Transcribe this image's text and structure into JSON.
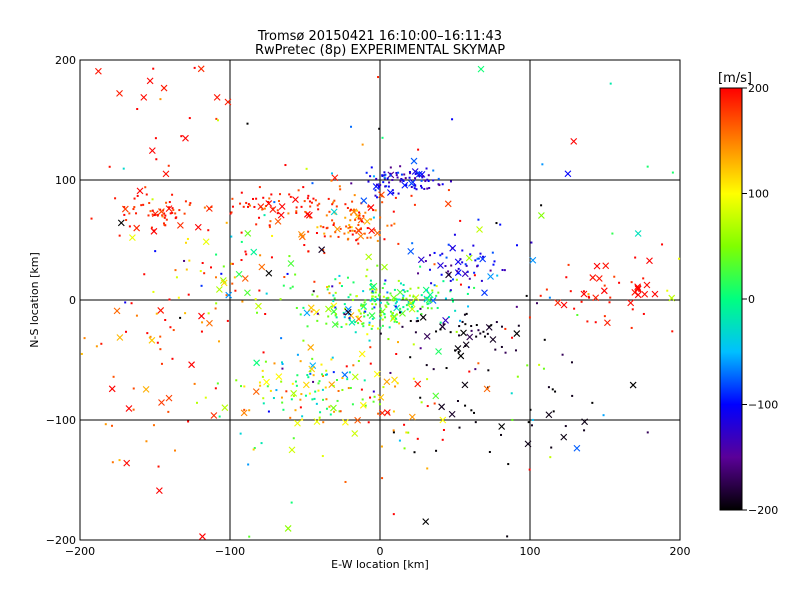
{
  "chart_data": {
    "type": "scatter",
    "title": "Tromsø 20150421 16:10:00–16:11:43",
    "subtitle": "RwPretec (8p) EXPERIMENTAL SKYMAP",
    "xlabel": "E-W location [km]",
    "ylabel": "N-S location [km]",
    "xlim": [
      -200,
      200
    ],
    "ylim": [
      -200,
      200
    ],
    "x_ticks": [
      -200,
      -100,
      0,
      100,
      200
    ],
    "y_ticks": [
      -200,
      -100,
      0,
      100,
      200
    ],
    "x_tick_labels": [
      "−200",
      "−100",
      "0",
      "100",
      "200"
    ],
    "y_tick_labels": [
      "−200",
      "−100",
      "0",
      "100",
      "200"
    ],
    "grid": true,
    "colorbar": {
      "label": "[m/s]",
      "min": -200,
      "max": 200,
      "ticks": [
        200,
        100,
        0,
        -100,
        -200
      ],
      "tick_labels": [
        "200",
        "100",
        "0",
        "−100",
        "−200"
      ],
      "colormap": [
        "#000000",
        "#5a0098",
        "#0000ff",
        "#00c0ff",
        "#00ff80",
        "#80ff00",
        "#ffff00",
        "#ff8000",
        "#ff0000"
      ]
    },
    "markers": [
      "dot",
      "x"
    ],
    "clusters": [
      {
        "cx": 15,
        "cy": 100,
        "sx": 15,
        "sy": 6,
        "n": 90,
        "v": -110,
        "vs": 25,
        "x_frac": 0.1
      },
      {
        "cx": -15,
        "cy": 62,
        "sx": 14,
        "sy": 10,
        "n": 90,
        "v": 165,
        "vs": 25,
        "x_frac": 0.12
      },
      {
        "cx": -65,
        "cy": 78,
        "sx": 30,
        "sy": 10,
        "n": 90,
        "v": 185,
        "vs": 20,
        "x_frac": 0.1
      },
      {
        "cx": -148,
        "cy": 72,
        "sx": 12,
        "sy": 10,
        "n": 60,
        "v": 190,
        "vs": 15,
        "x_frac": 0.15
      },
      {
        "cx": -12,
        "cy": -5,
        "sx": 18,
        "sy": 12,
        "n": 150,
        "v": 20,
        "vs": 45,
        "x_frac": 0.15
      },
      {
        "cx": 25,
        "cy": 0,
        "sx": 22,
        "sy": 8,
        "n": 80,
        "v": 0,
        "vs": 40,
        "x_frac": 0.15
      },
      {
        "cx": -50,
        "cy": -75,
        "sx": 28,
        "sy": 18,
        "n": 120,
        "v": 40,
        "vs": 70,
        "x_frac": 0.2
      },
      {
        "cx": 55,
        "cy": 30,
        "sx": 15,
        "sy": 12,
        "n": 60,
        "v": -110,
        "vs": 30,
        "x_frac": 0.2
      },
      {
        "cx": 155,
        "cy": 5,
        "sx": 22,
        "sy": 14,
        "n": 50,
        "v": 195,
        "vs": 10,
        "x_frac": 0.45
      },
      {
        "cx": 55,
        "cy": -25,
        "sx": 30,
        "sy": 16,
        "n": 60,
        "v": -190,
        "vs": 15,
        "x_frac": 0.2
      },
      {
        "cx": 90,
        "cy": -90,
        "sx": 30,
        "sy": 20,
        "n": 40,
        "v": -195,
        "vs": 10,
        "x_frac": 0.3
      },
      {
        "cx": -150,
        "cy": -60,
        "sx": 30,
        "sy": 45,
        "n": 60,
        "v": 180,
        "vs": 40,
        "x_frac": 0.2
      },
      {
        "cx": -100,
        "cy": 20,
        "sx": 30,
        "sy": 25,
        "n": 70,
        "v": 110,
        "vs": 100,
        "x_frac": 0.15
      },
      {
        "cx": 10,
        "cy": -80,
        "sx": 25,
        "sy": 25,
        "n": 50,
        "v": 150,
        "vs": 60,
        "x_frac": 0.3
      },
      {
        "cx": -140,
        "cy": 160,
        "sx": 30,
        "sy": 30,
        "n": 20,
        "v": 195,
        "vs": 10,
        "x_frac": 0.5
      },
      {
        "cx": 0,
        "cy": 0,
        "sx": 110,
        "sy": 110,
        "n": 120,
        "v": 0,
        "vs": 140,
        "x_frac": 0.25
      }
    ]
  }
}
